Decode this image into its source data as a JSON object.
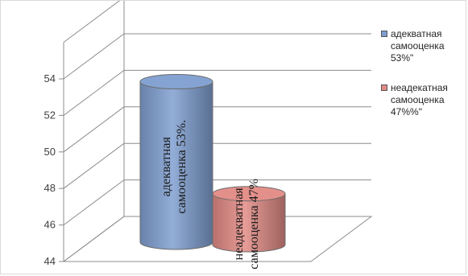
{
  "chart_data": {
    "type": "bar",
    "style": "3d-cylinder",
    "categories": [
      "адекватная самооценка 53%",
      "неадекватная самооценка 47%"
    ],
    "series": [
      {
        "name": "адекватная самооценка 53%\"",
        "value": 53,
        "color": "#7f9ed0",
        "data_label": "адекватная самооценка 53%."
      },
      {
        "name": "неадекатная самооценка 47%%\"",
        "value": 47,
        "color": "#e18a85",
        "data_label": "неадекватная самооценка 47%"
      }
    ],
    "ylim": [
      44,
      54
    ],
    "yticks": [
      44,
      46,
      48,
      50,
      52,
      54
    ],
    "grid": true,
    "legend_position": "right",
    "title": "",
    "xlabel": "",
    "ylabel": ""
  }
}
